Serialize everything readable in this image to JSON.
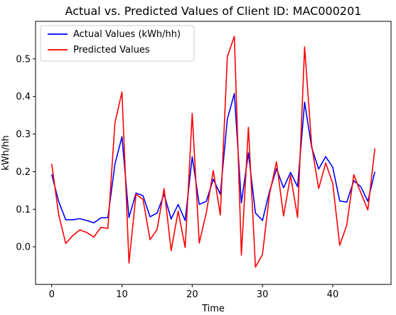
{
  "chart_data": {
    "type": "line",
    "title": "Actual vs. Predicted Values of Client ID: MAC000201",
    "xlabel": "Time",
    "ylabel": "kWh/hh",
    "xlim": [
      -2.3,
      48.3
    ],
    "ylim": [
      -0.1,
      0.6
    ],
    "xticks": [
      0,
      10,
      20,
      30,
      40
    ],
    "yticks": [
      0.0,
      0.1,
      0.2,
      0.3,
      0.4,
      0.5
    ],
    "ytick_labels": [
      "0.0",
      "0.1",
      "0.2",
      "0.3",
      "0.4",
      "0.5"
    ],
    "grid": false,
    "legend_position": "top-left",
    "x": [
      0,
      1,
      2,
      3,
      4,
      5,
      6,
      7,
      8,
      9,
      10,
      11,
      12,
      13,
      14,
      15,
      16,
      17,
      18,
      19,
      20,
      21,
      22,
      23,
      24,
      25,
      26,
      27,
      28,
      29,
      30,
      31,
      32,
      33,
      34,
      35,
      36,
      37,
      38,
      39,
      40,
      41,
      42,
      43,
      44,
      45,
      46
    ],
    "series": [
      {
        "name": "Actual Values (kWh/hh)",
        "color": "#0000ff",
        "values": [
          0.193,
          0.12,
          0.072,
          0.072,
          0.075,
          0.07,
          0.064,
          0.077,
          0.078,
          0.22,
          0.293,
          0.078,
          0.143,
          0.136,
          0.08,
          0.09,
          0.14,
          0.074,
          0.113,
          0.07,
          0.24,
          0.113,
          0.121,
          0.18,
          0.14,
          0.34,
          0.408,
          0.117,
          0.25,
          0.09,
          0.07,
          0.147,
          0.208,
          0.157,
          0.198,
          0.16,
          0.385,
          0.265,
          0.207,
          0.24,
          0.212,
          0.122,
          0.119,
          0.176,
          0.16,
          0.121,
          0.2
        ]
      },
      {
        "name": "Predicted Values",
        "color": "#ff0000",
        "values": [
          0.221,
          0.085,
          0.009,
          0.03,
          0.045,
          0.038,
          0.026,
          0.052,
          0.049,
          0.33,
          0.412,
          -0.043,
          0.14,
          0.126,
          0.019,
          0.046,
          0.155,
          -0.01,
          0.095,
          -0.002,
          0.355,
          0.01,
          0.09,
          0.203,
          0.085,
          0.506,
          0.56,
          -0.022,
          0.318,
          -0.054,
          -0.02,
          0.14,
          0.226,
          0.082,
          0.19,
          0.078,
          0.532,
          0.27,
          0.155,
          0.223,
          0.169,
          0.004,
          0.058,
          0.192,
          0.144,
          0.098,
          0.262
        ]
      }
    ]
  }
}
